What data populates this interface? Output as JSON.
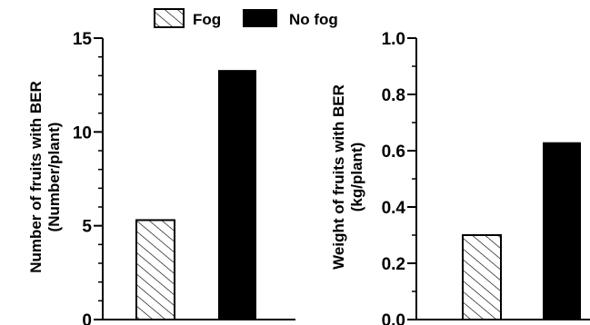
{
  "legend": [
    {
      "label": "Fog",
      "pattern": "hatch"
    },
    {
      "label": "No fog",
      "pattern": "solid"
    }
  ],
  "colors": {
    "ink": "#000000",
    "background": "#ffffff"
  },
  "chart_data": [
    {
      "type": "bar",
      "categories": [
        "Fog",
        "No fog"
      ],
      "values": [
        5.3,
        13.3
      ],
      "ylabel_line1": "Number of fruits with BER",
      "ylabel_line2": "(Number/plant)",
      "ylim": [
        0,
        15
      ],
      "ticks": [
        0,
        5,
        10,
        15
      ],
      "tick_labels": [
        "0",
        "5",
        "10",
        "15"
      ],
      "minor_step": 1,
      "grid": false
    },
    {
      "type": "bar",
      "categories": [
        "Fog",
        "No fog"
      ],
      "values": [
        0.3,
        0.63
      ],
      "ylabel_line1": "Weight of fruits with BER",
      "ylabel_line2": "(kg/plant)",
      "ylim": [
        0,
        1.0
      ],
      "ticks": [
        0,
        0.2,
        0.4,
        0.6,
        0.8,
        1.0
      ],
      "tick_labels": [
        "0.0",
        "0.2",
        "0.4",
        "0.6",
        "0.8",
        "1.0"
      ],
      "minor_step": 0.1,
      "grid": false
    }
  ]
}
